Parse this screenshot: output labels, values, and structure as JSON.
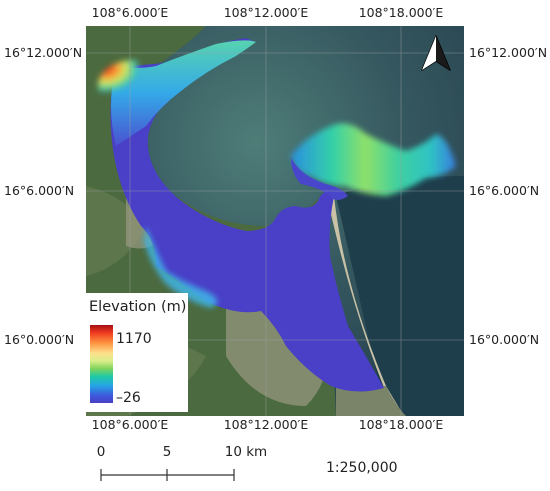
{
  "axes": {
    "top_labels": [
      "108°6.000′E",
      "108°12.000′E",
      "108°18.000′E"
    ],
    "bottom_labels": [
      "108°6.000′E",
      "108°12.000′E",
      "108°18.000′E"
    ],
    "left_labels": [
      "16°12.000′N",
      "16°6.000′N",
      "16°0.000′N"
    ],
    "right_labels": [
      "16°12.000′N",
      "16°6.000′N",
      "16°0.000′N"
    ]
  },
  "legend": {
    "title": "Elevation (m)",
    "max": "1170",
    "min": "–26"
  },
  "north_arrow": {
    "icon": "north-arrow-icon"
  },
  "scale_bar": {
    "ticks": [
      "0",
      "5",
      "10 km"
    ],
    "ratio": "1:250,000"
  },
  "colors": {
    "study_area_low": "#4a3fc7",
    "sea": "#2d4f5c",
    "land": "#4e6a40"
  }
}
